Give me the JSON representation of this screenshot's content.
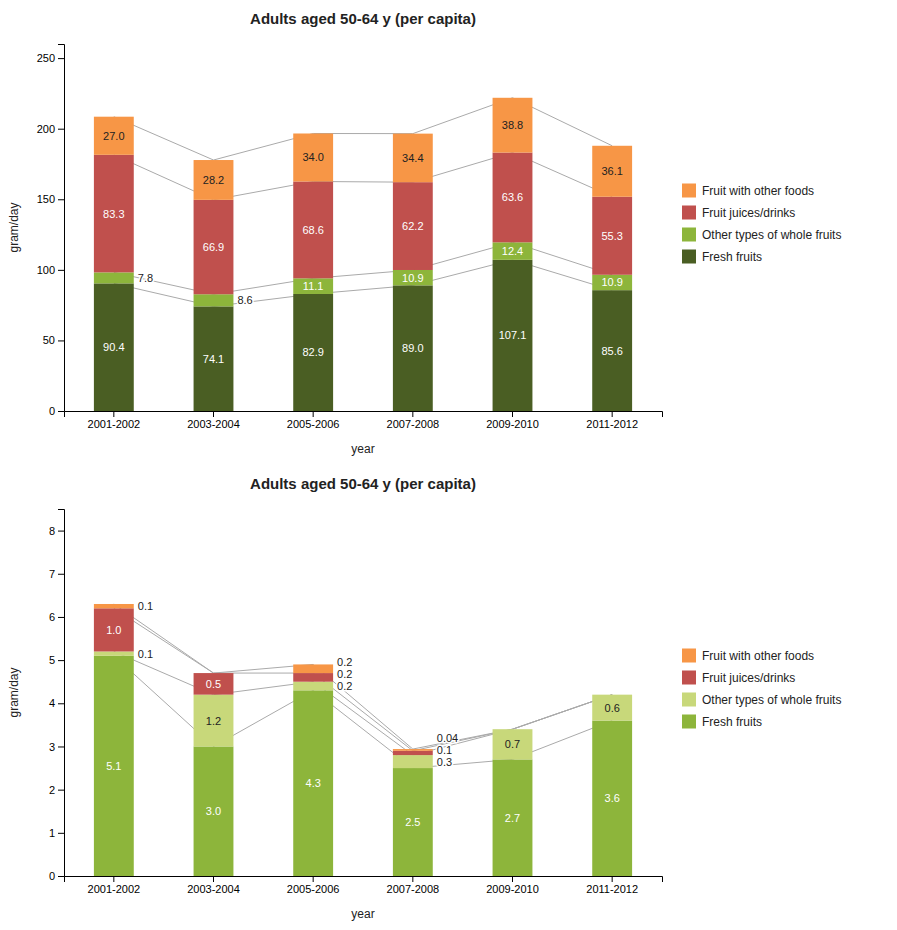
{
  "chart_data": [
    {
      "type": "bar",
      "stacked": true,
      "data_labels": true,
      "grid": false,
      "legend": "right",
      "title": "Adults aged 50-64 y (per capita)",
      "ylabel": "gram/day",
      "xlabel": "year",
      "categories": [
        "2001-2002",
        "2003-2004",
        "2005-2006",
        "2007-2008",
        "2009-2010",
        "2011-2012"
      ],
      "ylim": [
        0,
        260
      ],
      "yticks": [
        0,
        50,
        100,
        150,
        200,
        250
      ],
      "series": [
        {
          "name": "Fresh fruits",
          "color": "#4a5e23",
          "values": [
            90.4,
            74.1,
            82.9,
            89.0,
            107.1,
            85.6
          ],
          "value_labels": [
            "90.4",
            "74.1",
            "82.9",
            "89.0",
            "107.1",
            "85.6"
          ]
        },
        {
          "name": "Other types of whole fruits",
          "color": "#8db53b",
          "values": [
            7.8,
            8.6,
            11.1,
            10.9,
            12.4,
            10.9
          ],
          "value_labels": [
            "7.8",
            "8.6",
            "11.1",
            "10.9",
            "12.4",
            "10.9"
          ]
        },
        {
          "name": "Fruit juices/drinks",
          "color": "#c0504d",
          "values": [
            83.3,
            66.9,
            68.6,
            62.2,
            63.6,
            55.3
          ],
          "value_labels": [
            "83.3",
            "66.9",
            "68.6",
            "62.2",
            "63.6",
            "55.3"
          ]
        },
        {
          "name": "Fruit with other foods",
          "color": "#f79646",
          "values": [
            27.0,
            28.2,
            34.0,
            34.4,
            38.8,
            36.1
          ],
          "value_labels": [
            "27.0",
            "28.2",
            "34.0",
            "34.4",
            "38.8",
            "36.1"
          ]
        }
      ]
    },
    {
      "type": "bar",
      "stacked": true,
      "data_labels": true,
      "grid": false,
      "legend": "right",
      "title": "Adults aged 50-64 y (per capita)",
      "ylabel": "gram/day",
      "xlabel": "year",
      "categories": [
        "2001-2002",
        "2003-2004",
        "2005-2006",
        "2007-2008",
        "2009-2010",
        "2011-2012"
      ],
      "ylim": [
        0,
        8.5
      ],
      "yticks": [
        0,
        1,
        2,
        3,
        4,
        5,
        6,
        7,
        8
      ],
      "series": [
        {
          "name": "Fresh fruits",
          "color": "#8db53b",
          "values": [
            5.1,
            3.0,
            4.3,
            2.5,
            2.7,
            3.6
          ],
          "value_labels": [
            "5.1",
            "3.0",
            "4.3",
            "2.5",
            "2.7",
            "3.6"
          ]
        },
        {
          "name": "Other types of whole fruits",
          "color": "#c8d87a",
          "values": [
            0.1,
            1.2,
            0.2,
            0.3,
            0.7,
            0.6
          ],
          "value_labels": [
            "0.1",
            "1.2",
            "0.2",
            "0.3",
            "0.7",
            "0.6"
          ]
        },
        {
          "name": "Fruit juices/drinks",
          "color": "#c0504d",
          "values": [
            1.0,
            0.5,
            0.2,
            0.1,
            0.0,
            0.0
          ],
          "value_labels": [
            "1.0",
            "0.5",
            "0.2",
            "0.1",
            null,
            null
          ]
        },
        {
          "name": "Fruit with other foods",
          "color": "#f79646",
          "values": [
            0.1,
            0.0,
            0.2,
            0.04,
            0.0,
            0.0
          ],
          "value_labels": [
            "0.1",
            null,
            "0.2",
            "0.04",
            null,
            null
          ]
        }
      ]
    }
  ]
}
